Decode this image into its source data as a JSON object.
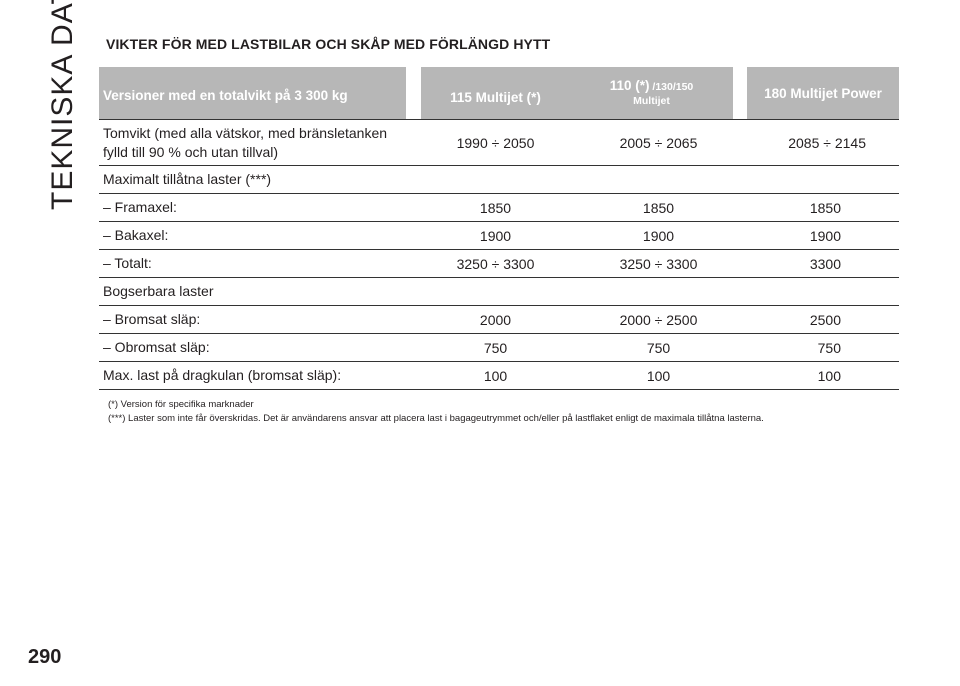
{
  "side_title": "TEKNISKA DATA",
  "page_number": "290",
  "section_title": "VIKTER FÖR MED LASTBILAR OCH SKÅP MED FÖRLÄNGD HYTT",
  "table": {
    "headers": {
      "col0": "Versioner med en totalvikt på 3 300 kg",
      "col1": "115 Multijet (*)",
      "col2_main": "110 (*)",
      "col2_small": " /130/150",
      "col2_line2": "Multijet",
      "col3": "180 Multijet Power"
    },
    "rows": [
      {
        "label_line1": "Tomvikt (med alla vätskor, med bränsletanken",
        "label_line2": "fylld till 90 % och utan tillval)",
        "v1": "1990 ÷ 2050",
        "v2": "2005 ÷ 2065",
        "v3": "2085 ÷ 2145"
      },
      {
        "label": "Maximalt tillåtna laster (***)",
        "v1": "",
        "v2": "",
        "v3": ""
      },
      {
        "label": "– Framaxel:",
        "v1": "1850",
        "v2": "1850",
        "v3": "1850"
      },
      {
        "label": "– Bakaxel:",
        "v1": "1900",
        "v2": "1900",
        "v3": "1900"
      },
      {
        "label": "– Totalt:",
        "v1": "3250 ÷ 3300",
        "v2": "3250 ÷ 3300",
        "v3": "3300"
      },
      {
        "label": "Bogserbara laster",
        "v1": "",
        "v2": "",
        "v3": ""
      },
      {
        "label": "– Bromsat släp:",
        "v1": "2000",
        "v2": "2000 ÷ 2500",
        "v3": "2500"
      },
      {
        "label": "– Obromsat släp:",
        "v1": "750",
        "v2": "750",
        "v3": "750"
      },
      {
        "label": "Max. last på dragkulan (bromsat släp):",
        "v1": "100",
        "v2": "100",
        "v3": "100"
      }
    ]
  },
  "footnotes": [
    "(*) Version för specifika marknader",
    "(***) Laster som inte får överskridas. Det är användarens ansvar att placera last i bagageutrymmet och/eller på lastflaket enligt de maximala tillåtna lasterna."
  ],
  "colors": {
    "header_bg": "#b7b7b7",
    "header_text": "#ffffff",
    "text": "#231f20"
  }
}
